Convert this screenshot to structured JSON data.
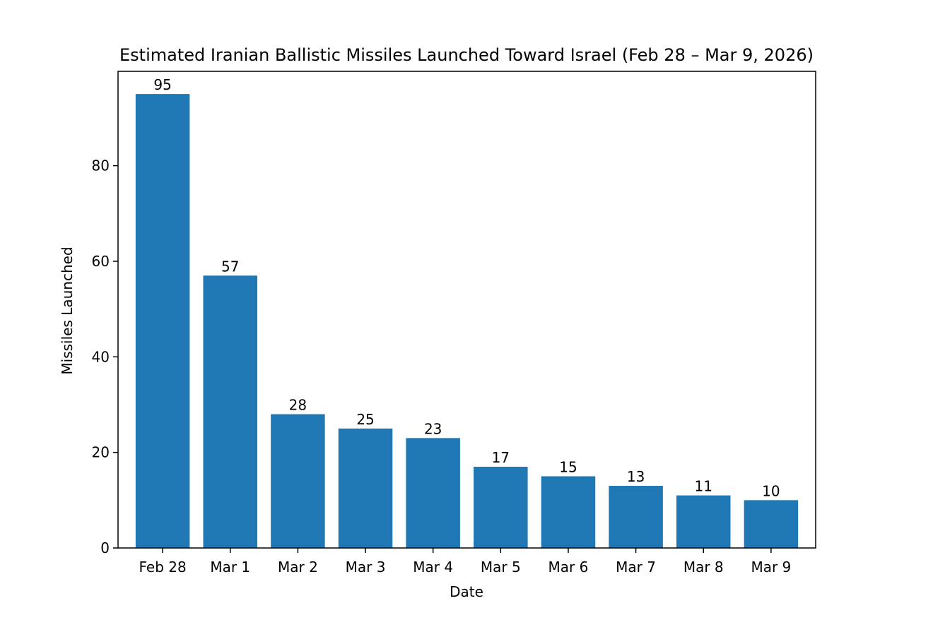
{
  "chart_data": {
    "type": "bar",
    "title": "Estimated Iranian Ballistic Missiles Launched Toward Israel (Feb 28 – Mar 9, 2026)",
    "xlabel": "Date",
    "ylabel": "Missiles Launched",
    "categories": [
      "Feb 28",
      "Mar 1",
      "Mar 2",
      "Mar 3",
      "Mar 4",
      "Mar 5",
      "Mar 6",
      "Mar 7",
      "Mar 8",
      "Mar 9"
    ],
    "values": [
      95,
      57,
      28,
      25,
      23,
      17,
      15,
      13,
      11,
      10
    ],
    "data_labels": [
      "95",
      "57",
      "28",
      "25",
      "23",
      "17",
      "15",
      "13",
      "11",
      "10"
    ],
    "yticks": [
      0,
      20,
      40,
      60,
      80
    ],
    "ylim": [
      0,
      99.75
    ],
    "grid": false,
    "legend": "none",
    "bar_color": "#1f77b4"
  }
}
